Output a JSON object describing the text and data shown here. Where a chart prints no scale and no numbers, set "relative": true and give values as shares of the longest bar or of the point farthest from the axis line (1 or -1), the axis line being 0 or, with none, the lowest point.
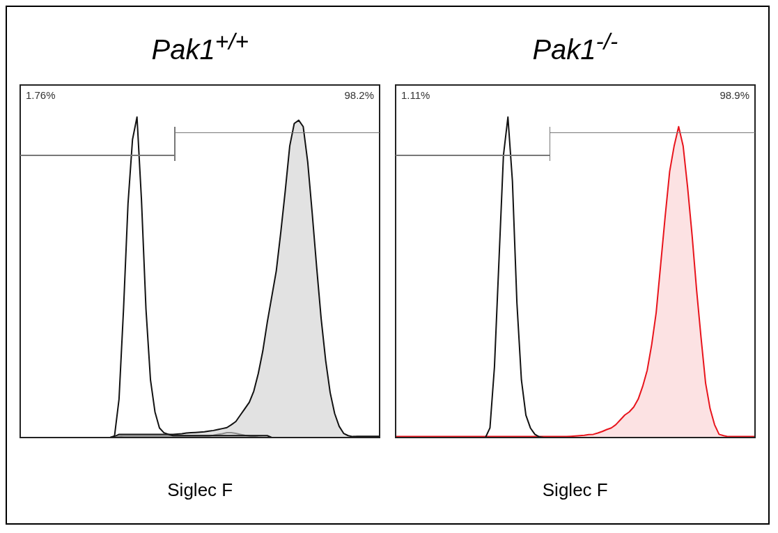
{
  "chart_data": [
    {
      "type": "line",
      "title": "Pak1$^{+/+}$",
      "xlabel": "Siglec F",
      "relative": true,
      "tick_labels": false,
      "legend": false,
      "annotations": [
        "1.76%",
        "98.2%"
      ],
      "categories": [
        null,
        null,
        null,
        null,
        null,
        null,
        null,
        null,
        null,
        null,
        null,
        null,
        null,
        null,
        null,
        null,
        null,
        null,
        null,
        null,
        null,
        null,
        null,
        null,
        null,
        null,
        null,
        null,
        null,
        null,
        null,
        null,
        null,
        null,
        null,
        null,
        null,
        null,
        null,
        null,
        null,
        null,
        null,
        null,
        null,
        null,
        null,
        null,
        null,
        null,
        null,
        null,
        null,
        null,
        null,
        null,
        null,
        null,
        null,
        null,
        null,
        null,
        null,
        null,
        null,
        null,
        null,
        null,
        null,
        null,
        null,
        null,
        null,
        null,
        null,
        null,
        null,
        null,
        null,
        null,
        null
      ],
      "series": [
        {
          "color": "#111111",
          "values": [
            0,
            0,
            0,
            0,
            0,
            0,
            0,
            0,
            0,
            0,
            0,
            0,
            0,
            0,
            0,
            0,
            0,
            0,
            0,
            0,
            0,
            0.005,
            0.12,
            0.4,
            0.73,
            0.93,
            1,
            0.74,
            0.4,
            0.18,
            0.08,
            0.03,
            0.015,
            0.01,
            0.006,
            0.006,
            0.006,
            0.006,
            0.006,
            0.006,
            0.006,
            0.006,
            0.006,
            0.006,
            0.006,
            0.006,
            0.006,
            0.006,
            0.006,
            0.006,
            0.006,
            0.006,
            0.006,
            0.006,
            0.006,
            0.006,
            0,
            0,
            0,
            0,
            0,
            0,
            0,
            0,
            0,
            0,
            0,
            0,
            0,
            0,
            0,
            0,
            0,
            0,
            0,
            0,
            0,
            0,
            0,
            0,
            0
          ]
        },
        {
          "color": "#8a8a8a",
          "values": [
            null,
            null,
            null,
            null,
            null,
            null,
            null,
            null,
            null,
            null,
            null,
            null,
            null,
            null,
            null,
            null,
            null,
            null,
            null,
            null,
            null,
            0,
            0.004,
            0.005,
            0.005,
            0.005,
            0.005,
            0.005,
            0.005,
            0.005,
            0.005,
            0.005,
            0.005,
            0.005,
            0.005,
            0.005,
            0.005,
            0.005,
            0.005,
            0.005,
            0.005,
            0.005,
            0.005,
            0.007,
            0.01,
            0.012,
            0.015,
            0.015,
            0.013,
            0.01,
            0.007,
            0.005,
            0.003,
            0.001,
            0,
            null,
            null,
            null,
            null,
            null,
            null,
            null,
            null,
            null,
            null,
            null,
            null,
            null,
            null,
            null,
            null,
            null,
            null,
            null,
            null,
            null,
            null,
            null,
            null,
            null,
            null
          ]
        },
        {
          "type": "area",
          "color": "#111111",
          "values": [
            0,
            0,
            0,
            0,
            0,
            0,
            0,
            0,
            0,
            0,
            0,
            0,
            0,
            0,
            0,
            0,
            0,
            0,
            0,
            0,
            0,
            0.003,
            0.01,
            0.01,
            0.01,
            0.01,
            0.01,
            0.01,
            0.01,
            0.01,
            0.01,
            0.01,
            0.01,
            0.01,
            0.01,
            0.011,
            0.012,
            0.014,
            0.015,
            0.016,
            0.017,
            0.018,
            0.02,
            0.022,
            0.025,
            0.028,
            0.031,
            0.04,
            0.05,
            0.07,
            0.09,
            0.11,
            0.145,
            0.2,
            0.27,
            0.36,
            0.44,
            0.52,
            0.64,
            0.77,
            0.91,
            0.98,
            0.99,
            0.97,
            0.86,
            0.7,
            0.53,
            0.37,
            0.24,
            0.14,
            0.075,
            0.035,
            0.013,
            0.006,
            0.003,
            0.004,
            0.004,
            0.004,
            0.004,
            0.004,
            0.004
          ]
        }
      ]
    },
    {
      "type": "line",
      "title": "Pak1$^{-/-}$",
      "xlabel": "Siglec F",
      "relative": true,
      "tick_labels": false,
      "legend": false,
      "annotations": [
        "1.11%",
        "98.9%"
      ],
      "categories": [
        null,
        null,
        null,
        null,
        null,
        null,
        null,
        null,
        null,
        null,
        null,
        null,
        null,
        null,
        null,
        null,
        null,
        null,
        null,
        null,
        null,
        null,
        null,
        null,
        null,
        null,
        null,
        null,
        null,
        null,
        null,
        null,
        null,
        null,
        null,
        null,
        null,
        null,
        null,
        null,
        null,
        null,
        null,
        null,
        null,
        null,
        null,
        null,
        null,
        null,
        null,
        null,
        null,
        null,
        null,
        null,
        null,
        null,
        null,
        null,
        null,
        null,
        null,
        null,
        null,
        null,
        null,
        null,
        null,
        null,
        null,
        null,
        null,
        null,
        null,
        null,
        null,
        null,
        null,
        null,
        null
      ],
      "series": [
        {
          "color": "#111111",
          "values": [
            0,
            0,
            0,
            0,
            0,
            0,
            0,
            0,
            0,
            0,
            0,
            0,
            0,
            0,
            0,
            0,
            0,
            0,
            0,
            0,
            0,
            0.03,
            0.22,
            0.55,
            0.88,
            1,
            0.8,
            0.42,
            0.18,
            0.07,
            0.03,
            0.01,
            0.002,
            0,
            0,
            0,
            0,
            0,
            0,
            0,
            0,
            0,
            0,
            0,
            0,
            0,
            0,
            0,
            0,
            0,
            0,
            0,
            0,
            0,
            0,
            0,
            0,
            0,
            0,
            0,
            0,
            0,
            0,
            0,
            0,
            0,
            0,
            0,
            0,
            0,
            0,
            0,
            0,
            0,
            0,
            0,
            0,
            0,
            0,
            0,
            0
          ]
        },
        {
          "type": "area",
          "color": "#e8141c",
          "values": [
            0.003,
            0.003,
            0.003,
            0.003,
            0.003,
            0.003,
            0.003,
            0.003,
            0.003,
            0.003,
            0.003,
            0.003,
            0.003,
            0.003,
            0.003,
            0.003,
            0.003,
            0.003,
            0.003,
            0.003,
            0.003,
            0.003,
            0.003,
            0.003,
            0.003,
            0.003,
            0.003,
            0.003,
            0.003,
            0.003,
            0.003,
            0.003,
            0.003,
            0.003,
            0.003,
            0.003,
            0.003,
            0.003,
            0.003,
            0.004,
            0.005,
            0.006,
            0.007,
            0.009,
            0.01,
            0.014,
            0.019,
            0.025,
            0.03,
            0.04,
            0.055,
            0.07,
            0.08,
            0.095,
            0.12,
            0.16,
            0.21,
            0.29,
            0.39,
            0.54,
            0.69,
            0.83,
            0.91,
            0.97,
            0.91,
            0.78,
            0.63,
            0.46,
            0.31,
            0.17,
            0.09,
            0.04,
            0.01,
            0.006,
            0.003,
            0.003,
            0.003,
            0.003,
            0.003,
            0.003,
            0.003
          ]
        }
      ]
    }
  ]
}
